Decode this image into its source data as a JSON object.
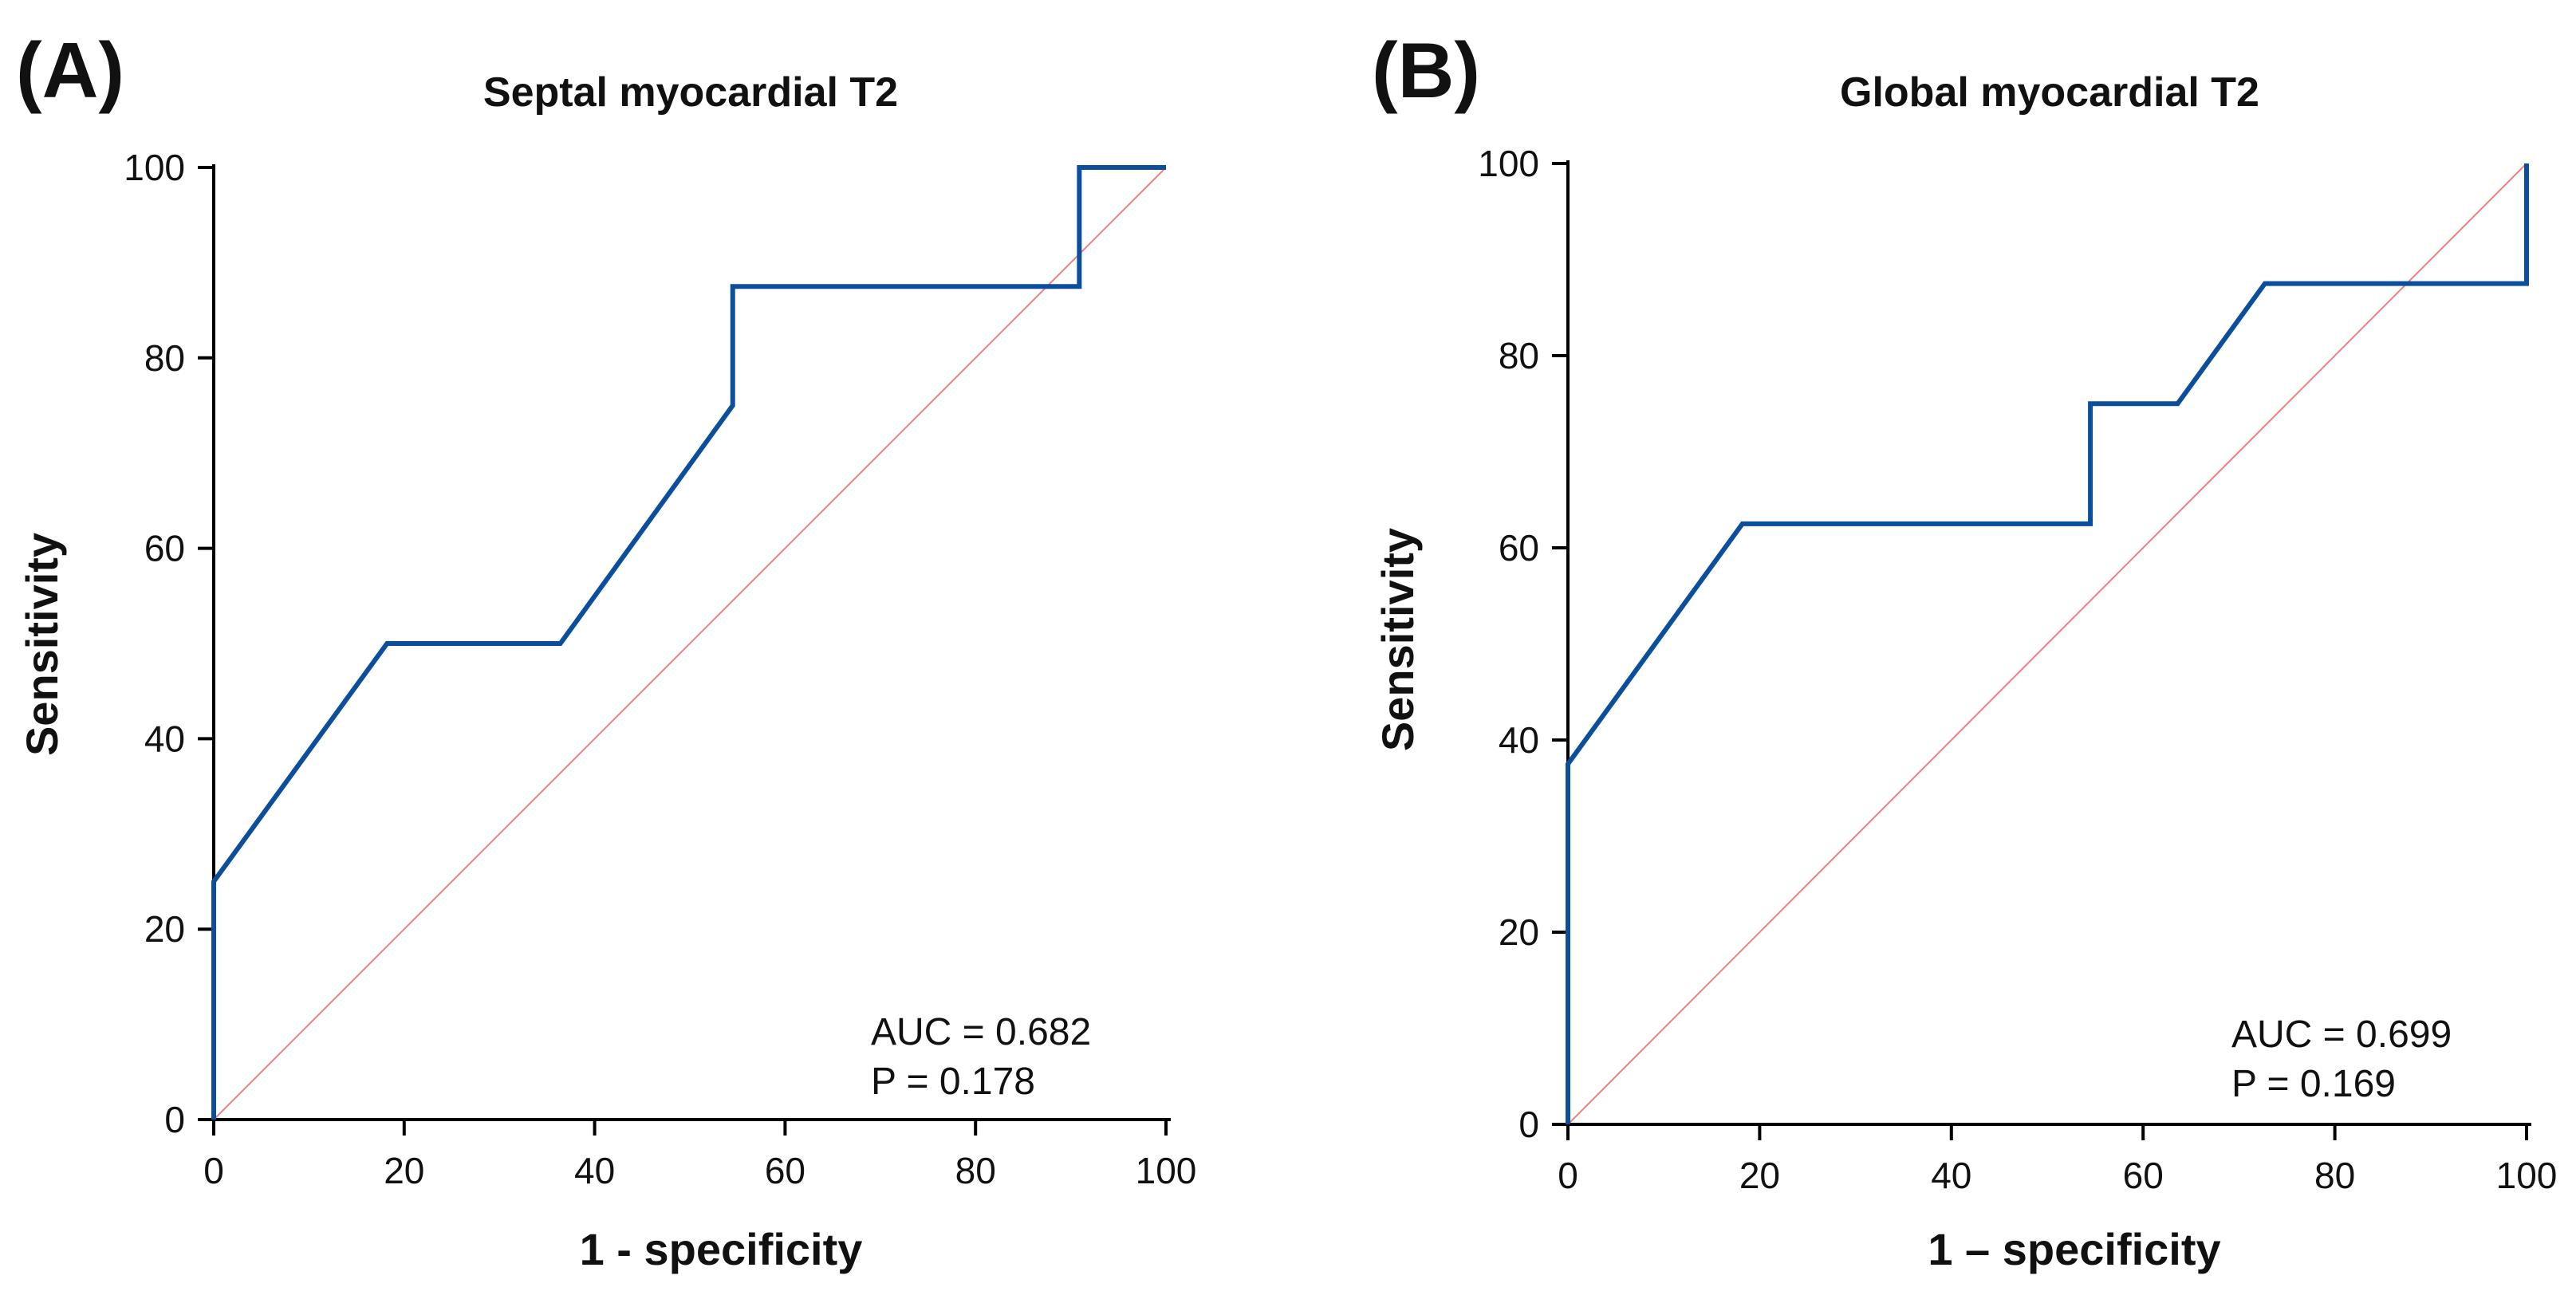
{
  "chart_data": [
    {
      "type": "line",
      "panel_label": "(A)",
      "title": "Septal myocardial T2",
      "xlabel": "1 - specificity",
      "ylabel": "Sensitivity",
      "xlim": [
        0,
        100
      ],
      "ylim": [
        0,
        100
      ],
      "xticks": [
        0,
        20,
        40,
        60,
        80,
        100
      ],
      "yticks": [
        0,
        20,
        40,
        60,
        80,
        100
      ],
      "grid": false,
      "series": [
        {
          "color": "#0b4f9c",
          "x": [
            0,
            0,
            18.2,
            36.4,
            54.5,
            54.5,
            90.9,
            90.9,
            100
          ],
          "y": [
            0,
            25,
            50,
            50,
            75,
            87.5,
            87.5,
            100,
            100
          ]
        }
      ],
      "reference_line": {
        "x": [
          0,
          100
        ],
        "y": [
          0,
          100
        ],
        "color": "#f08080"
      },
      "annotations": [
        "AUC = 0.682",
        "P = 0.178"
      ]
    },
    {
      "type": "line",
      "panel_label": "(B)",
      "title": "Global myocardial T2",
      "xlabel": "1 – specificity",
      "ylabel": "Sensitivity",
      "xlim": [
        0,
        100
      ],
      "ylim": [
        0,
        100
      ],
      "xticks": [
        0,
        20,
        40,
        60,
        80,
        100
      ],
      "yticks": [
        0,
        20,
        40,
        60,
        80,
        100
      ],
      "grid": false,
      "series": [
        {
          "color": "#0b4f9c",
          "x": [
            0,
            0,
            18.2,
            54.5,
            54.5,
            63.6,
            72.7,
            100,
            100
          ],
          "y": [
            0,
            37.5,
            62.5,
            62.5,
            75,
            75,
            87.5,
            87.5,
            100
          ]
        }
      ],
      "reference_line": {
        "x": [
          0,
          100
        ],
        "y": [
          0,
          100
        ],
        "color": "#f08080"
      },
      "annotations": [
        "AUC = 0.699",
        "P = 0.169"
      ]
    }
  ]
}
